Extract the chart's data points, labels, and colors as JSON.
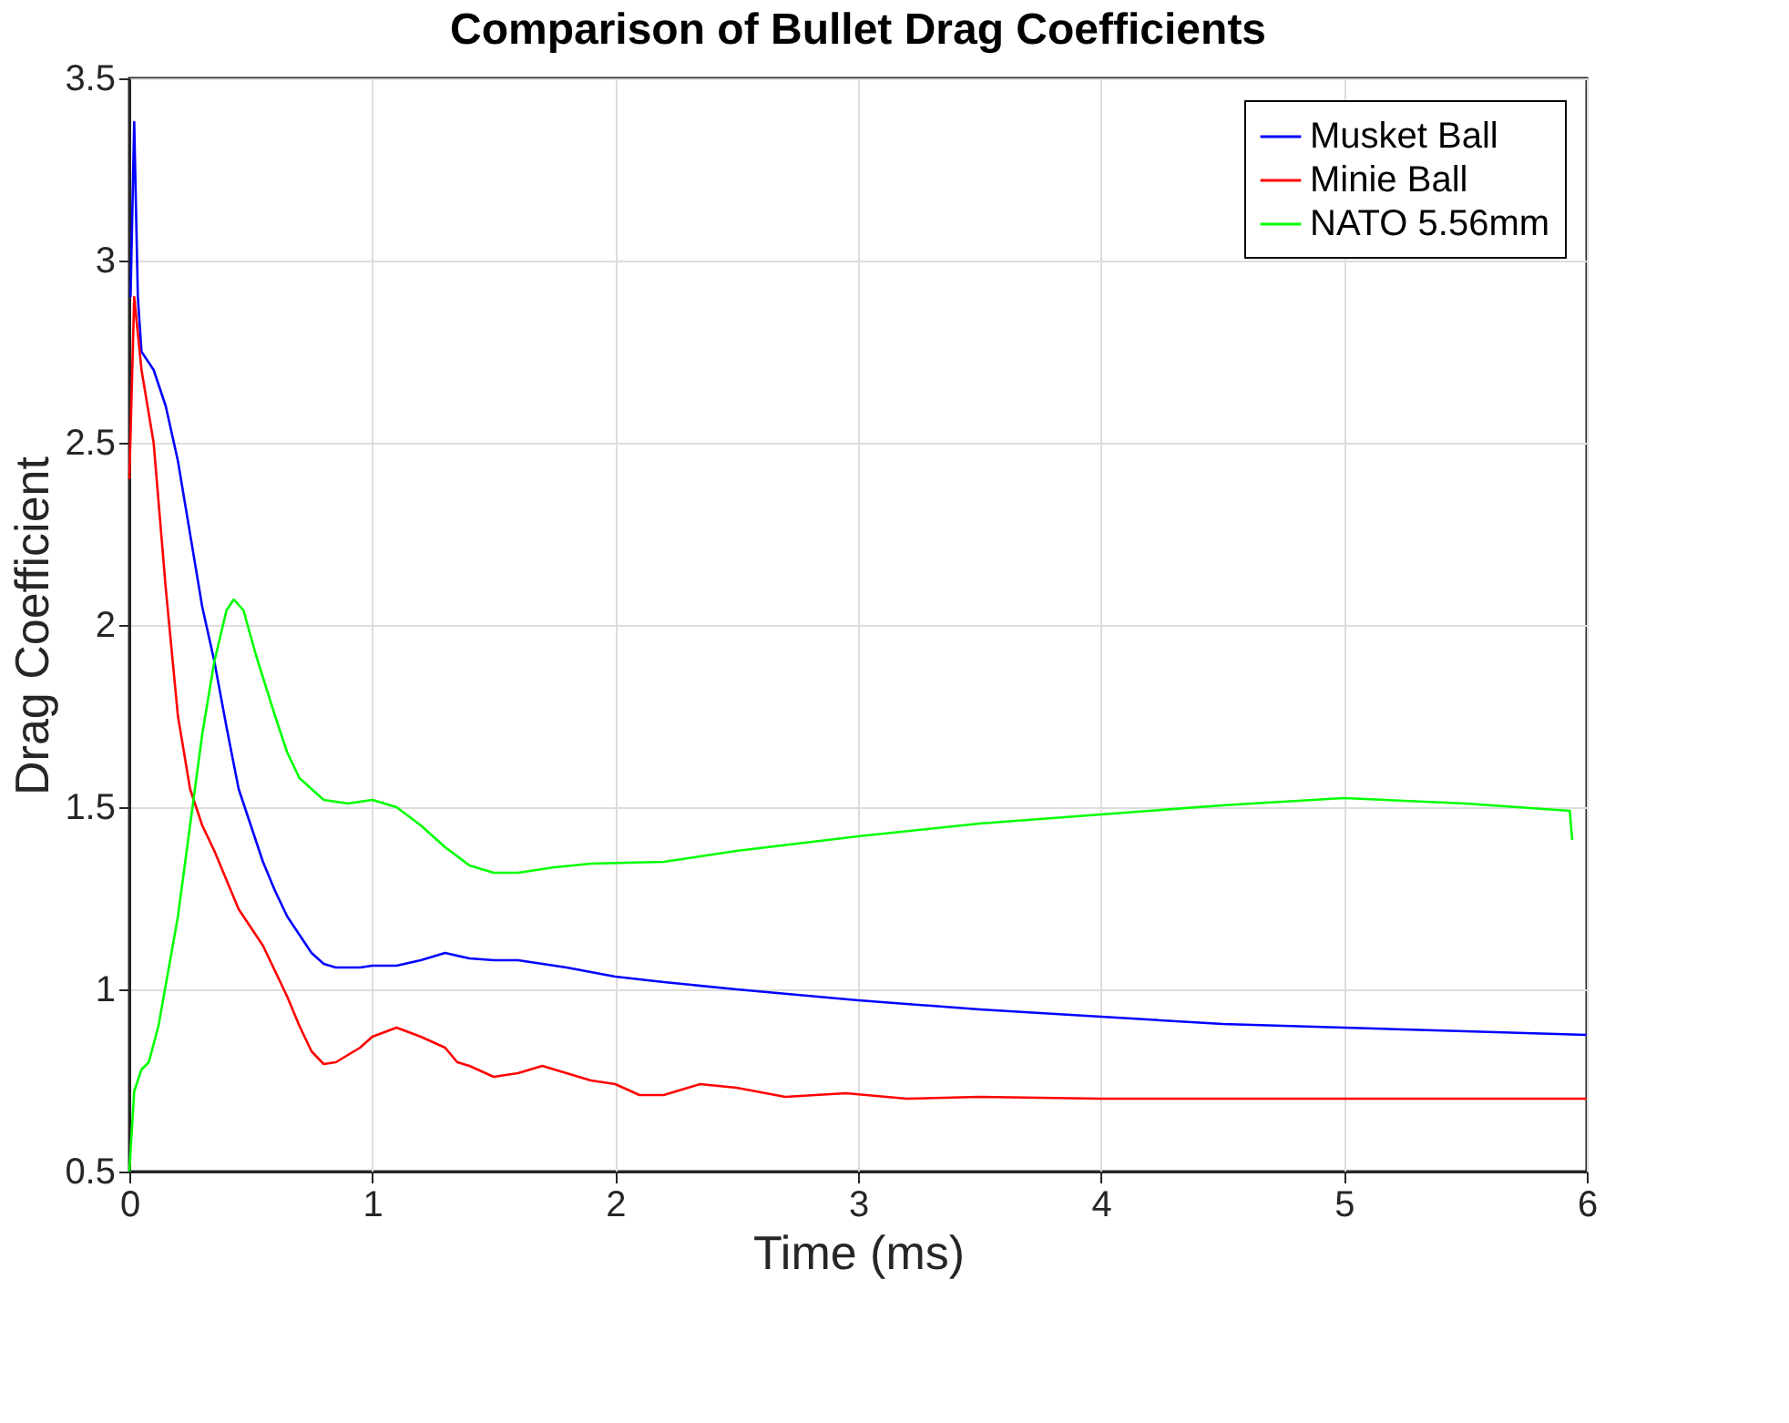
{
  "chart_data": {
    "type": "line",
    "title": "Comparison of Bullet Drag Coefficients",
    "xlabel": "Time (ms)",
    "ylabel": "Drag Coefficient",
    "xlim": [
      0,
      6
    ],
    "xticks": [
      0,
      1,
      2,
      3,
      4,
      5,
      6
    ],
    "ylim": [
      0.5,
      3.5
    ],
    "yticks": [
      0.5,
      1,
      1.5,
      2,
      2.5,
      3,
      3.5
    ],
    "grid": true,
    "legend": "top right",
    "marker": "none",
    "line_style": "solid",
    "series": [
      {
        "name": "Musket Ball",
        "color": "#0000ff",
        "x": [
          0.005,
          0.02,
          0.035,
          0.05,
          0.1,
          0.15,
          0.2,
          0.25,
          0.3,
          0.35,
          0.4,
          0.45,
          0.5,
          0.55,
          0.6,
          0.65,
          0.7,
          0.75,
          0.8,
          0.85,
          0.95,
          1.0,
          1.1,
          1.2,
          1.3,
          1.4,
          1.5,
          1.6,
          1.8,
          2.0,
          2.2,
          2.5,
          3.0,
          3.5,
          4.0,
          4.5,
          5.0,
          5.5,
          6.0
        ],
        "values": [
          2.9,
          3.38,
          2.9,
          2.75,
          2.7,
          2.6,
          2.45,
          2.25,
          2.05,
          1.9,
          1.72,
          1.55,
          1.45,
          1.35,
          1.27,
          1.2,
          1.15,
          1.1,
          1.07,
          1.06,
          1.06,
          1.065,
          1.065,
          1.08,
          1.1,
          1.085,
          1.08,
          1.08,
          1.06,
          1.035,
          1.02,
          1.0,
          0.97,
          0.945,
          0.925,
          0.905,
          0.895,
          0.885,
          0.875
        ]
      },
      {
        "name": "Minie Ball",
        "color": "#ff0000",
        "x": [
          0.0,
          0.02,
          0.05,
          0.1,
          0.15,
          0.2,
          0.25,
          0.3,
          0.35,
          0.4,
          0.45,
          0.5,
          0.55,
          0.6,
          0.65,
          0.7,
          0.75,
          0.8,
          0.85,
          0.95,
          1.0,
          1.1,
          1.2,
          1.3,
          1.35,
          1.4,
          1.5,
          1.6,
          1.7,
          1.8,
          1.9,
          2.0,
          2.1,
          2.2,
          2.35,
          2.5,
          2.7,
          2.95,
          3.2,
          3.5,
          4.0,
          5.0,
          6.0
        ],
        "values": [
          2.4,
          2.9,
          2.7,
          2.5,
          2.1,
          1.75,
          1.55,
          1.45,
          1.38,
          1.3,
          1.22,
          1.17,
          1.12,
          1.05,
          0.98,
          0.9,
          0.83,
          0.795,
          0.8,
          0.84,
          0.87,
          0.895,
          0.87,
          0.84,
          0.8,
          0.79,
          0.76,
          0.77,
          0.79,
          0.77,
          0.75,
          0.74,
          0.71,
          0.71,
          0.74,
          0.73,
          0.705,
          0.715,
          0.7,
          0.705,
          0.7,
          0.7,
          0.7
        ]
      },
      {
        "name": "NATO 5.56mm",
        "color": "#00ff00",
        "x": [
          0.0,
          0.02,
          0.05,
          0.08,
          0.12,
          0.2,
          0.25,
          0.3,
          0.35,
          0.4,
          0.43,
          0.47,
          0.52,
          0.6,
          0.65,
          0.7,
          0.8,
          0.9,
          1.0,
          1.1,
          1.2,
          1.3,
          1.4,
          1.5,
          1.6,
          1.75,
          1.9,
          2.2,
          2.5,
          3.0,
          3.5,
          4.0,
          4.5,
          5.0,
          5.5,
          5.93,
          5.94
        ],
        "values": [
          0.5,
          0.72,
          0.78,
          0.8,
          0.9,
          1.2,
          1.45,
          1.7,
          1.9,
          2.04,
          2.07,
          2.04,
          1.92,
          1.75,
          1.65,
          1.58,
          1.52,
          1.51,
          1.52,
          1.5,
          1.45,
          1.39,
          1.34,
          1.32,
          1.32,
          1.335,
          1.345,
          1.35,
          1.38,
          1.42,
          1.455,
          1.48,
          1.505,
          1.525,
          1.51,
          1.49,
          1.41
        ]
      }
    ]
  }
}
